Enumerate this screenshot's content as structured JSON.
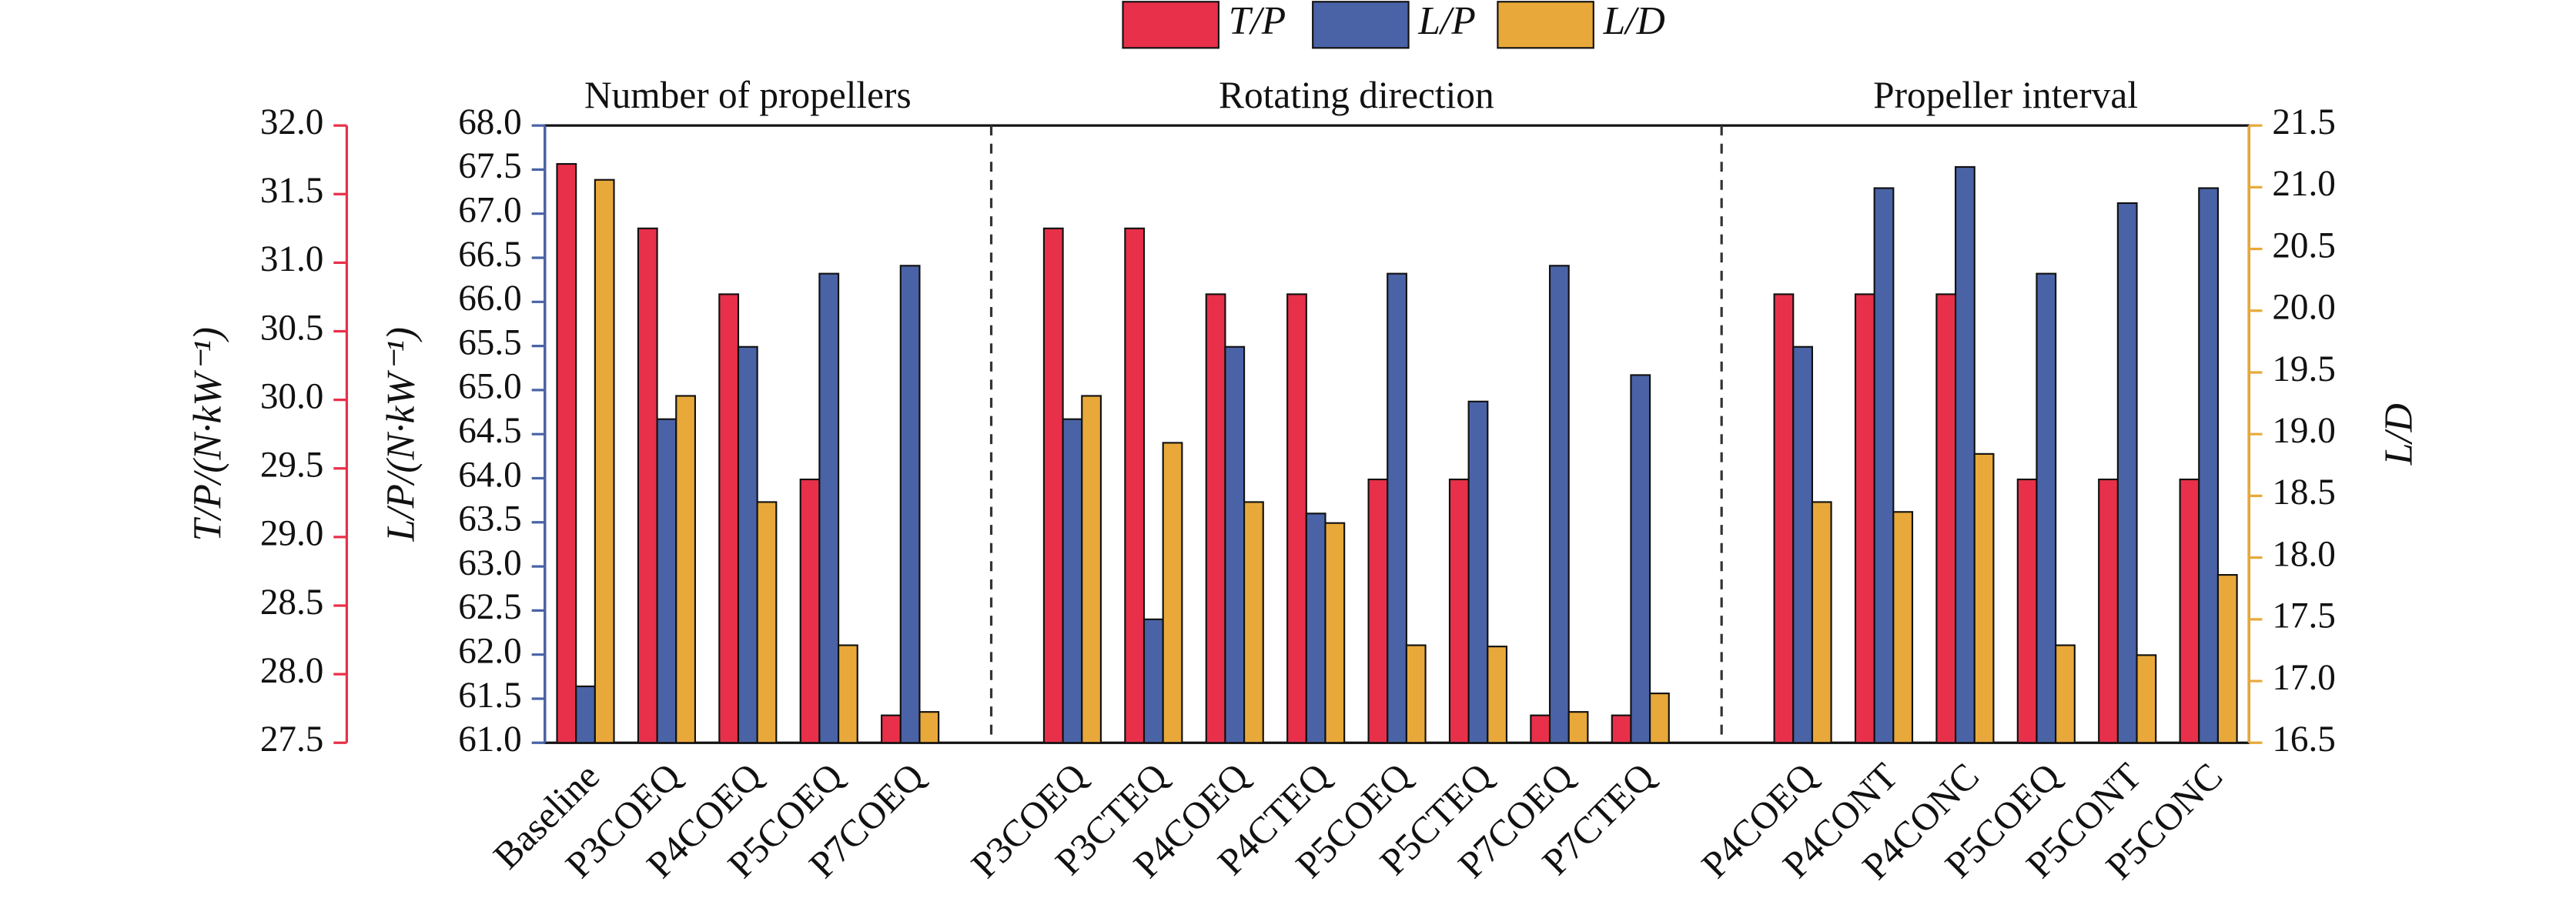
{
  "chart_data": {
    "type": "bar",
    "groups": [
      "Number of propellers",
      "Rotating direction",
      "Propeller interval"
    ],
    "categories": [
      "Baseline",
      "P3COEQ",
      "P4COEQ",
      "P5COEQ",
      "P7COEQ",
      null,
      "P3COEQ",
      "P3CTEQ",
      "P4COEQ",
      "P4CTEQ",
      "P5COEQ",
      "P5CTEQ",
      "P7COEQ",
      "P7CTEQ",
      null,
      "P4COEQ",
      "P4CONT",
      "P4CONC",
      "P5COEQ",
      "P5CONT",
      "P5CONC"
    ],
    "series": [
      {
        "name": "T/P",
        "color": "#e8304a",
        "axis": "y",
        "values": [
          31.72,
          31.25,
          30.77,
          29.42,
          27.7,
          null,
          31.25,
          31.25,
          30.77,
          30.77,
          29.42,
          29.42,
          27.7,
          27.7,
          null,
          30.77,
          30.77,
          30.77,
          29.42,
          29.42,
          29.42
        ]
      },
      {
        "name": "L/P",
        "color": "#4a63a6",
        "axis": "y2",
        "values": [
          61.64,
          64.67,
          65.49,
          66.32,
          66.41,
          null,
          64.67,
          62.4,
          65.49,
          63.6,
          66.32,
          64.87,
          66.41,
          65.17,
          null,
          65.49,
          67.29,
          67.53,
          66.32,
          67.12,
          67.29
        ]
      },
      {
        "name": "L/D",
        "color": "#e8a93a",
        "axis": "y3",
        "values": [
          21.06,
          19.31,
          18.45,
          17.29,
          16.75,
          null,
          19.31,
          18.93,
          18.45,
          18.28,
          17.29,
          17.28,
          16.75,
          16.9,
          null,
          18.45,
          18.37,
          18.84,
          17.29,
          17.21,
          17.86
        ]
      }
    ],
    "ylabel": "T/P/(N·kW⁻¹)",
    "y2label": "L/P/(N·kW⁻¹)",
    "y3label": "L/D",
    "ylim": [
      27.5,
      32.0
    ],
    "yticks": [
      27.5,
      {
        "value": 28,
        "label": "28.0"
      },
      28.5,
      {
        "value": 29,
        "label": "29.0"
      },
      29.5,
      {
        "value": 30,
        "label": "30.0"
      },
      30.5,
      {
        "value": 31,
        "label": "31.0"
      },
      31.5,
      {
        "value": 32,
        "label": "32.0"
      }
    ],
    "y2lim": [
      61.0,
      68.0
    ],
    "y2ticks": [
      {
        "value": 61,
        "label": "61.0"
      },
      61.5,
      {
        "value": 62,
        "label": "62.0"
      },
      62.5,
      {
        "value": 63,
        "label": "63.0"
      },
      63.5,
      {
        "value": 64,
        "label": "64.0"
      },
      64.5,
      {
        "value": 65,
        "label": "65.0"
      },
      65.5,
      {
        "value": 66,
        "label": "66.0"
      },
      66.5,
      {
        "value": 67,
        "label": "67.0"
      },
      67.5,
      {
        "value": 68,
        "label": "68.0"
      }
    ],
    "y3lim": [
      16.5,
      21.5
    ],
    "y3ticks": [
      16.5,
      {
        "value": 17,
        "label": "17.0"
      },
      17.5,
      {
        "value": 18,
        "label": "18.0"
      },
      18.5,
      {
        "value": 19,
        "label": "19.0"
      },
      19.5,
      {
        "value": 20,
        "label": "20.0"
      },
      20.5,
      {
        "value": 21,
        "label": "21.0"
      },
      21.5
    ]
  }
}
